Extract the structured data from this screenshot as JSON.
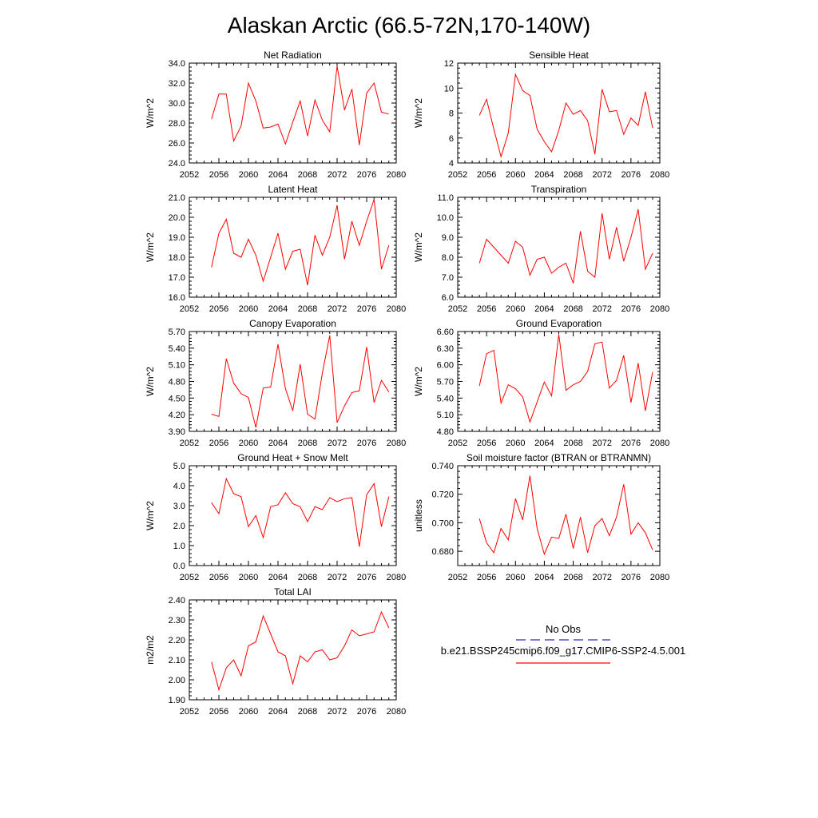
{
  "title": "Alaskan Arctic (66.5-72N,170-140W)",
  "colors": {
    "model": "#ff0000",
    "obs": "#2b2bbf"
  },
  "legend": {
    "obs_label": "No Obs",
    "model_label": "b.e21.BSSP245cmip6.f09_g17.CMIP6-SSP2-4.5.001"
  },
  "chart_data": [
    {
      "type": "line",
      "title": "Net Radiation",
      "ylabel": "W/m^2",
      "xlim": [
        2052,
        2080
      ],
      "xticks": [
        2052,
        2056,
        2060,
        2064,
        2068,
        2072,
        2076,
        2080
      ],
      "ylim": [
        24,
        34
      ],
      "yticks": [
        "24.0",
        "26.0",
        "28.0",
        "30.0",
        "32.0",
        "34.0"
      ],
      "series": [
        {
          "x": [
            2055,
            2056,
            2057,
            2058,
            2059,
            2060,
            2061,
            2062,
            2063,
            2064,
            2065,
            2066,
            2067,
            2068,
            2069,
            2070,
            2071,
            2072,
            2073,
            2074,
            2075,
            2076,
            2077,
            2078,
            2079
          ],
          "values": [
            28.4,
            30.9,
            30.9,
            26.2,
            27.7,
            32.0,
            30.2,
            27.5,
            27.6,
            27.9,
            25.9,
            28.1,
            30.2,
            26.7,
            30.3,
            28.3,
            27.1,
            33.7,
            29.3,
            31.4,
            25.8,
            31.0,
            32.0,
            29.1,
            28.9
          ]
        }
      ]
    },
    {
      "type": "line",
      "title": "Sensible Heat",
      "ylabel": "W/m^2",
      "xlim": [
        2052,
        2080
      ],
      "xticks": [
        2052,
        2056,
        2060,
        2064,
        2068,
        2072,
        2076,
        2080
      ],
      "ylim": [
        4,
        12
      ],
      "yticks": [
        "4",
        "6",
        "8",
        "10",
        "12"
      ],
      "series": [
        {
          "x": [
            2055,
            2056,
            2057,
            2058,
            2059,
            2060,
            2061,
            2062,
            2063,
            2064,
            2065,
            2066,
            2067,
            2068,
            2069,
            2070,
            2071,
            2072,
            2073,
            2074,
            2075,
            2076,
            2077,
            2078,
            2079
          ],
          "values": [
            7.8,
            9.1,
            6.7,
            4.5,
            6.4,
            11.1,
            9.8,
            9.4,
            6.7,
            5.7,
            4.9,
            6.6,
            8.8,
            7.9,
            8.2,
            7.4,
            4.7,
            9.9,
            8.1,
            8.2,
            6.3,
            7.6,
            7.0,
            9.7,
            6.8
          ]
        }
      ]
    },
    {
      "type": "line",
      "title": "Latent Heat",
      "ylabel": "W/m^2",
      "xlim": [
        2052,
        2080
      ],
      "xticks": [
        2052,
        2056,
        2060,
        2064,
        2068,
        2072,
        2076,
        2080
      ],
      "ylim": [
        16,
        21
      ],
      "yticks": [
        "16.0",
        "17.0",
        "18.0",
        "19.0",
        "20.0",
        "21.0"
      ],
      "series": [
        {
          "x": [
            2055,
            2056,
            2057,
            2058,
            2059,
            2060,
            2061,
            2062,
            2063,
            2064,
            2065,
            2066,
            2067,
            2068,
            2069,
            2070,
            2071,
            2072,
            2073,
            2074,
            2075,
            2076,
            2077,
            2078,
            2079
          ],
          "values": [
            17.5,
            19.2,
            19.9,
            18.2,
            18.0,
            18.9,
            18.1,
            16.8,
            18.0,
            19.2,
            17.4,
            18.3,
            18.4,
            16.6,
            19.1,
            18.1,
            19.0,
            20.6,
            17.9,
            19.8,
            18.6,
            19.8,
            20.9,
            17.4,
            18.6
          ]
        }
      ]
    },
    {
      "type": "line",
      "title": "Transpiration",
      "ylabel": "W/m^2",
      "xlim": [
        2052,
        2080
      ],
      "xticks": [
        2052,
        2056,
        2060,
        2064,
        2068,
        2072,
        2076,
        2080
      ],
      "ylim": [
        6,
        11
      ],
      "yticks": [
        "6.0",
        "7.0",
        "8.0",
        "9.0",
        "10.0",
        "11.0"
      ],
      "series": [
        {
          "x": [
            2055,
            2056,
            2057,
            2058,
            2059,
            2060,
            2061,
            2062,
            2063,
            2064,
            2065,
            2066,
            2067,
            2068,
            2069,
            2070,
            2071,
            2072,
            2073,
            2074,
            2075,
            2076,
            2077,
            2078,
            2079
          ],
          "values": [
            7.7,
            8.9,
            8.5,
            8.1,
            7.7,
            8.8,
            8.5,
            7.1,
            7.9,
            8.0,
            7.2,
            7.5,
            7.7,
            6.7,
            9.3,
            7.3,
            7.0,
            10.2,
            7.9,
            9.5,
            7.8,
            9.0,
            10.4,
            7.4,
            8.2
          ]
        }
      ]
    },
    {
      "type": "line",
      "title": "Canopy Evaporation",
      "ylabel": "W/m^2",
      "xlim": [
        2052,
        2080
      ],
      "xticks": [
        2052,
        2056,
        2060,
        2064,
        2068,
        2072,
        2076,
        2080
      ],
      "ylim": [
        3.9,
        5.7
      ],
      "yticks": [
        "3.90",
        "4.20",
        "4.50",
        "4.80",
        "5.10",
        "5.40",
        "5.70"
      ],
      "series": [
        {
          "x": [
            2055,
            2056,
            2057,
            2058,
            2059,
            2060,
            2061,
            2062,
            2063,
            2064,
            2065,
            2066,
            2067,
            2068,
            2069,
            2070,
            2071,
            2072,
            2073,
            2074,
            2075,
            2076,
            2077,
            2078,
            2079
          ],
          "values": [
            4.21,
            4.17,
            5.21,
            4.77,
            4.58,
            4.51,
            3.97,
            4.68,
            4.7,
            5.47,
            4.67,
            4.27,
            5.11,
            4.21,
            4.12,
            4.95,
            5.63,
            4.06,
            4.36,
            4.6,
            4.63,
            5.42,
            4.42,
            4.82,
            4.61
          ]
        }
      ]
    },
    {
      "type": "line",
      "title": "Ground Evaporation",
      "ylabel": "W/m^2",
      "xlim": [
        2052,
        2080
      ],
      "xticks": [
        2052,
        2056,
        2060,
        2064,
        2068,
        2072,
        2076,
        2080
      ],
      "ylim": [
        4.8,
        6.6
      ],
      "yticks": [
        "4.80",
        "5.10",
        "5.40",
        "5.70",
        "6.00",
        "6.30",
        "6.60"
      ],
      "series": [
        {
          "x": [
            2055,
            2056,
            2057,
            2058,
            2059,
            2060,
            2061,
            2062,
            2063,
            2064,
            2065,
            2066,
            2067,
            2068,
            2069,
            2070,
            2071,
            2072,
            2073,
            2074,
            2075,
            2076,
            2077,
            2078,
            2079
          ],
          "values": [
            5.62,
            6.2,
            6.26,
            5.31,
            5.64,
            5.57,
            5.42,
            4.97,
            5.33,
            5.69,
            5.44,
            6.55,
            5.54,
            5.64,
            5.7,
            5.88,
            6.38,
            6.41,
            5.58,
            5.72,
            6.17,
            5.32,
            6.03,
            5.17,
            5.87
          ]
        }
      ]
    },
    {
      "type": "line",
      "title": "Ground Heat + Snow Melt",
      "ylabel": "W/m^2",
      "xlim": [
        2052,
        2080
      ],
      "xticks": [
        2052,
        2056,
        2060,
        2064,
        2068,
        2072,
        2076,
        2080
      ],
      "ylim": [
        0,
        5
      ],
      "yticks": [
        "0.0",
        "1.0",
        "2.0",
        "3.0",
        "4.0",
        "5.0"
      ],
      "series": [
        {
          "x": [
            2055,
            2056,
            2057,
            2058,
            2059,
            2060,
            2061,
            2062,
            2063,
            2064,
            2065,
            2066,
            2067,
            2068,
            2069,
            2070,
            2071,
            2072,
            2073,
            2074,
            2075,
            2076,
            2077,
            2078,
            2079
          ],
          "values": [
            3.15,
            2.6,
            4.35,
            3.6,
            3.45,
            1.95,
            2.5,
            1.4,
            2.95,
            3.05,
            3.65,
            3.1,
            2.95,
            2.2,
            2.95,
            2.8,
            3.4,
            3.2,
            3.35,
            3.4,
            0.95,
            3.55,
            4.1,
            1.95,
            3.45
          ]
        }
      ]
    },
    {
      "type": "line",
      "title": "Soil moisture factor (BTRAN or BTRANMN)",
      "ylabel": "unitless",
      "xlim": [
        2052,
        2080
      ],
      "xticks": [
        2052,
        2056,
        2060,
        2064,
        2068,
        2072,
        2076,
        2080
      ],
      "ylim": [
        0.67,
        0.74
      ],
      "yticks": [
        "0.680",
        "0.700",
        "0.720",
        "0.740"
      ],
      "series": [
        {
          "x": [
            2055,
            2056,
            2057,
            2058,
            2059,
            2060,
            2061,
            2062,
            2063,
            2064,
            2065,
            2066,
            2067,
            2068,
            2069,
            2070,
            2071,
            2072,
            2073,
            2074,
            2075,
            2076,
            2077,
            2078,
            2079
          ],
          "values": [
            0.703,
            0.686,
            0.679,
            0.696,
            0.688,
            0.717,
            0.702,
            0.733,
            0.696,
            0.678,
            0.69,
            0.689,
            0.706,
            0.682,
            0.704,
            0.679,
            0.698,
            0.703,
            0.691,
            0.704,
            0.727,
            0.692,
            0.7,
            0.693,
            0.681
          ]
        }
      ]
    },
    {
      "type": "line",
      "title": "Total LAI",
      "ylabel": "m2/m2",
      "xlim": [
        2052,
        2080
      ],
      "xticks": [
        2052,
        2056,
        2060,
        2064,
        2068,
        2072,
        2076,
        2080
      ],
      "ylim": [
        1.9,
        2.4
      ],
      "yticks": [
        "1.90",
        "2.00",
        "2.10",
        "2.20",
        "2.30",
        "2.40"
      ],
      "series": [
        {
          "x": [
            2055,
            2056,
            2057,
            2058,
            2059,
            2060,
            2061,
            2062,
            2063,
            2064,
            2065,
            2066,
            2067,
            2068,
            2069,
            2070,
            2071,
            2072,
            2073,
            2074,
            2075,
            2076,
            2077,
            2078,
            2079
          ],
          "values": [
            2.09,
            1.95,
            2.06,
            2.1,
            2.02,
            2.17,
            2.19,
            2.32,
            2.23,
            2.14,
            2.12,
            1.98,
            2.12,
            2.09,
            2.14,
            2.15,
            2.1,
            2.11,
            2.17,
            2.25,
            2.22,
            2.23,
            2.24,
            2.34,
            2.26
          ]
        }
      ]
    }
  ]
}
